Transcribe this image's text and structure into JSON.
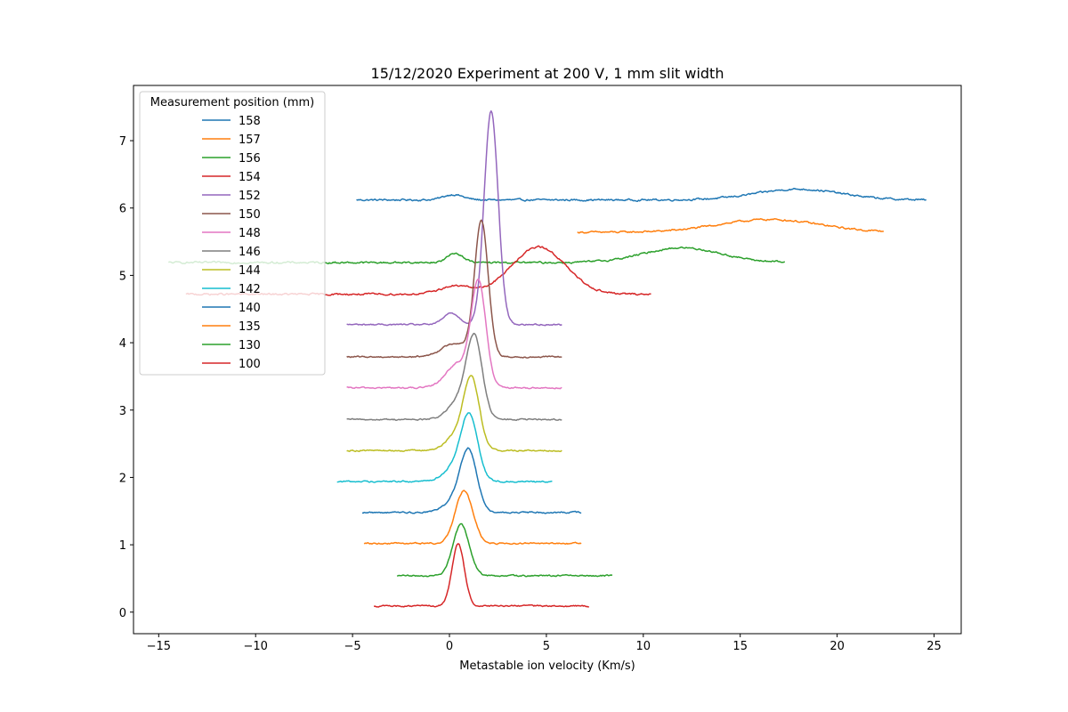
{
  "chart_data": {
    "type": "line",
    "title": "15/12/2020 Experiment at 200 V, 1 mm slit width",
    "xlabel": "Metastable ion velocity (Km/s)",
    "ylabel": "",
    "xlim": [
      -16.3,
      26.4
    ],
    "ylim": [
      -0.32,
      7.82
    ],
    "xticks": [
      -15,
      -10,
      -5,
      0,
      5,
      10,
      15,
      20,
      25
    ],
    "xtick_labels": [
      "−15",
      "−10",
      "−5",
      "0",
      "5",
      "10",
      "15",
      "20",
      "25"
    ],
    "yticks": [
      0,
      1,
      2,
      3,
      4,
      5,
      6,
      7
    ],
    "ytick_labels": [
      "0",
      "1",
      "2",
      "3",
      "4",
      "5",
      "6",
      "7"
    ],
    "grid": false,
    "legend": {
      "title": "Measurement position (mm)",
      "placement": "top-left"
    },
    "series": [
      {
        "name": "158",
        "color": "#1f77b4",
        "baseline": 6.12,
        "x_start": -4.8,
        "x_end": 24.6,
        "peaks": [
          [
            0.2,
            0.08,
            0.5
          ],
          [
            18.0,
            0.16,
            2.2
          ]
        ],
        "noise": 0.012
      },
      {
        "name": "157",
        "color": "#ff7f0e",
        "baseline": 5.64,
        "x_start": 6.6,
        "x_end": 22.4,
        "peaks": [
          [
            16.5,
            0.19,
            2.6
          ]
        ],
        "noise": 0.012
      },
      {
        "name": "156",
        "color": "#2ca02c",
        "baseline": 5.19,
        "x_start": -14.5,
        "x_end": 17.3,
        "peaks": [
          [
            0.3,
            0.14,
            0.4
          ],
          [
            12.0,
            0.22,
            2.0
          ]
        ],
        "noise": 0.012
      },
      {
        "name": "154",
        "color": "#d62728",
        "baseline": 4.72,
        "x_start": -13.6,
        "x_end": 10.4,
        "peaks": [
          [
            0.3,
            0.12,
            0.8
          ],
          [
            4.6,
            0.7,
            1.4
          ]
        ],
        "noise": 0.012
      },
      {
        "name": "152",
        "color": "#9467bd",
        "baseline": 4.27,
        "x_start": -5.3,
        "x_end": 5.8,
        "peaks": [
          [
            0.1,
            0.17,
            0.4
          ],
          [
            2.15,
            3.17,
            0.36
          ]
        ],
        "noise": 0.01
      },
      {
        "name": "150",
        "color": "#8c564b",
        "baseline": 3.79,
        "x_start": -5.3,
        "x_end": 5.8,
        "peaks": [
          [
            0.3,
            0.2,
            0.7
          ],
          [
            1.65,
            2.0,
            0.35
          ]
        ],
        "noise": 0.01
      },
      {
        "name": "148",
        "color": "#e377c2",
        "baseline": 3.33,
        "x_start": -5.3,
        "x_end": 5.8,
        "peaks": [
          [
            0.4,
            0.35,
            0.6
          ],
          [
            1.5,
            1.55,
            0.38
          ]
        ],
        "noise": 0.01
      },
      {
        "name": "146",
        "color": "#7f7f7f",
        "baseline": 2.86,
        "x_start": -5.3,
        "x_end": 5.8,
        "peaks": [
          [
            0.6,
            0.3,
            0.6
          ],
          [
            1.3,
            1.12,
            0.4
          ]
        ],
        "noise": 0.01
      },
      {
        "name": "144",
        "color": "#bcbd22",
        "baseline": 2.4,
        "x_start": -5.3,
        "x_end": 5.8,
        "peaks": [
          [
            0.5,
            0.25,
            0.6
          ],
          [
            1.15,
            0.97,
            0.4
          ]
        ],
        "noise": 0.01
      },
      {
        "name": "142",
        "color": "#17becf",
        "baseline": 1.94,
        "x_start": -5.8,
        "x_end": 5.3,
        "peaks": [
          [
            0.4,
            0.25,
            0.6
          ],
          [
            1.05,
            0.88,
            0.42
          ]
        ],
        "noise": 0.01
      },
      {
        "name": "140",
        "color": "#1f77b4",
        "baseline": 1.48,
        "x_start": -4.5,
        "x_end": 6.8,
        "peaks": [
          [
            0.4,
            0.2,
            0.6
          ],
          [
            1.0,
            0.83,
            0.42
          ]
        ],
        "noise": 0.01
      },
      {
        "name": "135",
        "color": "#ff7f0e",
        "baseline": 1.02,
        "x_start": -4.4,
        "x_end": 6.8,
        "peaks": [
          [
            0.75,
            0.78,
            0.45
          ]
        ],
        "noise": 0.01
      },
      {
        "name": "130",
        "color": "#2ca02c",
        "baseline": 0.54,
        "x_start": -2.7,
        "x_end": 8.4,
        "peaks": [
          [
            0.6,
            0.76,
            0.42
          ]
        ],
        "noise": 0.01
      },
      {
        "name": "100",
        "color": "#d62728",
        "baseline": 0.09,
        "x_start": -3.9,
        "x_end": 7.2,
        "peaks": [
          [
            0.45,
            0.92,
            0.32
          ]
        ],
        "noise": 0.01
      }
    ]
  }
}
